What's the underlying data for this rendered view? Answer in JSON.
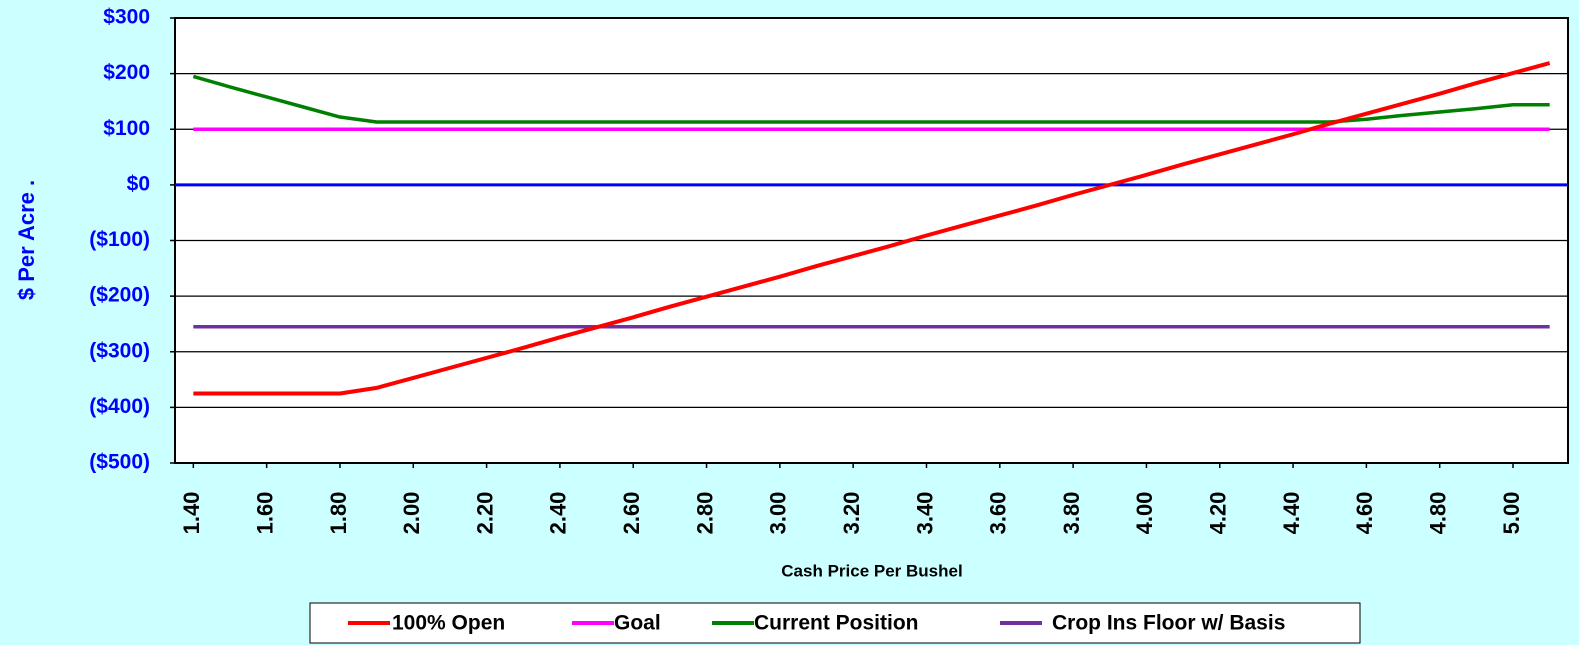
{
  "chart_data": {
    "type": "line",
    "y_label": "$ Per Acre   .",
    "x_label": "Cash Price Per Bushel",
    "categories": [
      "1.40",
      null,
      "1.60",
      null,
      "1.80",
      null,
      "2.00",
      null,
      "2.20",
      null,
      "2.40",
      null,
      "2.60",
      null,
      "2.80",
      null,
      "3.00",
      null,
      "3.20",
      null,
      "3.40",
      null,
      "3.60",
      null,
      "3.80",
      null,
      "4.00",
      null,
      "4.20",
      null,
      "4.40",
      null,
      "4.60",
      null,
      "4.80",
      null,
      "5.00",
      null
    ],
    "series": [
      {
        "name": "100% Open",
        "color": "#ff0000",
        "values": [
          -375,
          -375,
          -375,
          -375,
          -375,
          -365,
          -347,
          -329,
          -311,
          -293,
          -274,
          -256,
          -238,
          -219,
          -201,
          -183,
          -165,
          -146,
          -128,
          -110,
          -91,
          -73,
          -55,
          -37,
          -18,
          0,
          18,
          37,
          55,
          73,
          91,
          110,
          128,
          146,
          164,
          183,
          201,
          219
        ]
      },
      {
        "name": "Goal",
        "color": "#ff00ff",
        "values": [
          100,
          100,
          100,
          100,
          100,
          100,
          100,
          100,
          100,
          100,
          100,
          100,
          100,
          100,
          100,
          100,
          100,
          100,
          100,
          100,
          100,
          100,
          100,
          100,
          100,
          100,
          100,
          100,
          100,
          100,
          100,
          100,
          100,
          100,
          100,
          100,
          100,
          100
        ]
      },
      {
        "name": "Current Position",
        "color": "#008000",
        "values": [
          195,
          176,
          158,
          140,
          122,
          113,
          113,
          113,
          113,
          113,
          113,
          113,
          113,
          113,
          113,
          113,
          113,
          113,
          113,
          113,
          113,
          113,
          113,
          113,
          113,
          113,
          113,
          113,
          113,
          113,
          113,
          113,
          118,
          125,
          131,
          137,
          144,
          144
        ]
      },
      {
        "name": "Crop Ins Floor w/ Basis",
        "color": "#7030a0",
        "values": [
          -255,
          -255,
          -255,
          -255,
          -255,
          -255,
          -255,
          -255,
          -255,
          -255,
          -255,
          -255,
          -255,
          -255,
          -255,
          -255,
          -255,
          -255,
          -255,
          -255,
          -255,
          -255,
          -255,
          -255,
          -255,
          -255,
          -255,
          -255,
          -255,
          -255,
          -255,
          -255,
          -255,
          -255,
          -255,
          -255,
          -255,
          -255
        ]
      }
    ],
    "ylim": [
      -500,
      300
    ],
    "yticks": [
      {
        "value": -500,
        "label": "($500)"
      },
      {
        "value": -400,
        "label": "($400)"
      },
      {
        "value": -300,
        "label": "($300)"
      },
      {
        "value": -200,
        "label": "($200)"
      },
      {
        "value": -100,
        "label": "($100)"
      },
      {
        "value": 0,
        "label": "$0"
      },
      {
        "value": 100,
        "label": "$100"
      },
      {
        "value": 200,
        "label": "$200"
      },
      {
        "value": 300,
        "label": "$300"
      }
    ],
    "grid": true,
    "zero_line_color": "#0000ff",
    "legend": "bottom"
  }
}
